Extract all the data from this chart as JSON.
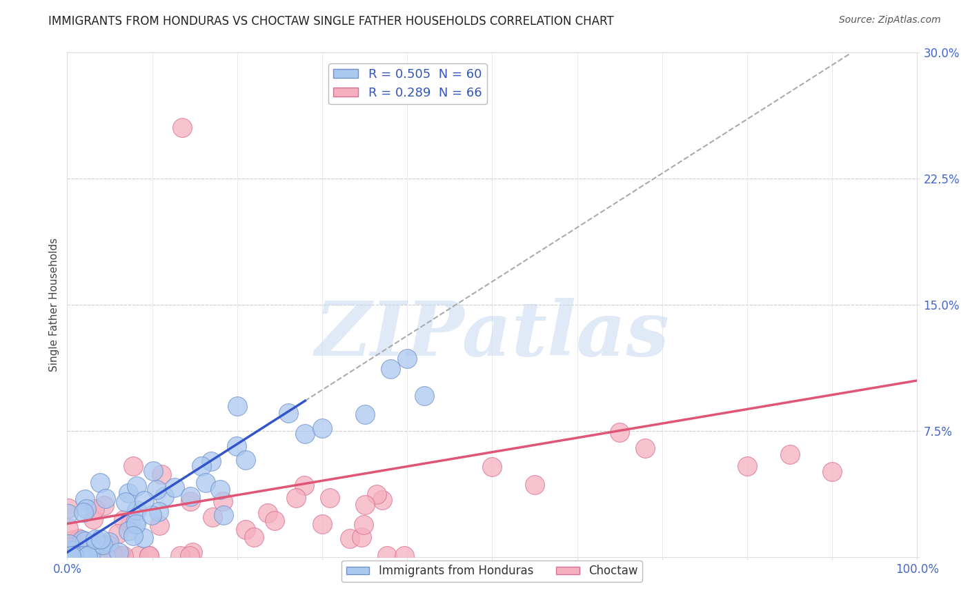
{
  "title": "IMMIGRANTS FROM HONDURAS VS CHOCTAW SINGLE FATHER HOUSEHOLDS CORRELATION CHART",
  "source": "Source: ZipAtlas.com",
  "ylabel": "Single Father Households",
  "xlim": [
    0,
    1.0
  ],
  "ylim": [
    0,
    0.3
  ],
  "blue_color": "#aac8f0",
  "pink_color": "#f5afc0",
  "blue_edge": "#7090c8",
  "pink_edge": "#d87090",
  "blue_line_color": "#3355cc",
  "pink_line_color": "#e05575",
  "gray_dash_color": "#aaaaaa",
  "R_blue": 0.505,
  "N_blue": 60,
  "R_pink": 0.289,
  "N_pink": 66,
  "legend_blue_label": "R = 0.505  N = 60",
  "legend_pink_label": "R = 0.289  N = 66",
  "series1_name": "Immigrants from Honduras",
  "series2_name": "Choctaw",
  "watermark": "ZIPatlas",
  "title_color": "#222222",
  "axis_label_color": "#4466cc",
  "grid_color": "#cccccc",
  "legend_R_color": "#3355bb",
  "legend_N_color": "#3355bb"
}
